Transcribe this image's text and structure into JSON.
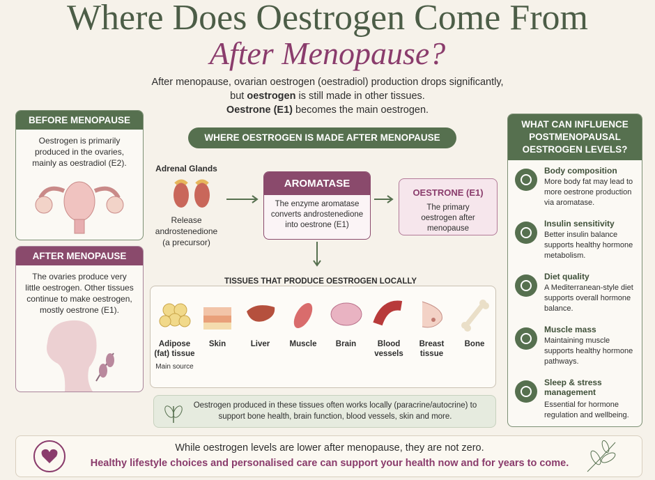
{
  "header": {
    "title": "Where Does Oestrogen Come From",
    "subtitle": "After Menopause?",
    "intro": [
      "After menopause, ovarian oestrogen (oestradiol) production drops significantly,",
      [
        "but ",
        "oestrogen",
        " is still made in other tissues."
      ],
      [
        "Oestrone (E1)",
        " becomes the main oestrogen."
      ]
    ]
  },
  "before": {
    "title": "BEFORE MENOPAUSE",
    "text": "Oestrogen is primarily produced in the ovaries, mainly as oestradiol (E2)."
  },
  "after": {
    "title": "AFTER MENOPAUSE",
    "text": "The ovaries produce very little oestrogen. Other tissues continue to make oestrogen, mostly oestrone (E1)."
  },
  "center": {
    "banner": "WHERE OESTROGEN IS MADE AFTER MENOPAUSE",
    "adrenal": {
      "title": "Adrenal Glands",
      "text": "Release androstenedione (a precursor)"
    },
    "aromatase": {
      "title": "AROMATASE",
      "text": "The enzyme aromatase converts androstenedione into oestrone (E1)"
    },
    "oestrone": {
      "title": "OESTRONE (E1)",
      "text": "The primary oestrogen after menopause"
    },
    "tissues": {
      "title": "TISSUES THAT PRODUCE OESTROGEN LOCALLY",
      "items": [
        {
          "name": "Adipose (fat) tissue",
          "note": "Main source"
        },
        {
          "name": "Skin"
        },
        {
          "name": "Liver"
        },
        {
          "name": "Muscle"
        },
        {
          "name": "Brain"
        },
        {
          "name": "Blood vessels"
        },
        {
          "name": "Breast tissue"
        },
        {
          "name": "Bone"
        }
      ]
    },
    "note": "Oestrogen produced in these tissues often works locally (paracrine/autocrine) to support bone health, brain function, blood vessels, skin and more."
  },
  "factors": {
    "title": "WHAT CAN INFLUENCE POSTMENOPAUSAL OESTROGEN LEVELS?",
    "items": [
      {
        "title": "Body composition",
        "text": "More body fat may lead to more oestrone production via aromatase."
      },
      {
        "title": "Insulin sensitivity",
        "text": "Better insulin balance supports healthy hormone metabolism."
      },
      {
        "title": "Diet quality",
        "text": "A Mediterranean-style diet supports overall hormone balance."
      },
      {
        "title": "Muscle mass",
        "text": "Maintaining muscle supports healthy hormone pathways."
      },
      {
        "title": "Sleep & stress management",
        "text": "Essential for hormone regulation and wellbeing."
      }
    ]
  },
  "footer": [
    "While oestrogen levels are lower after menopause, they are not zero.",
    "Healthy lifestyle choices and personalised care can support your health now and for years to come."
  ]
}
